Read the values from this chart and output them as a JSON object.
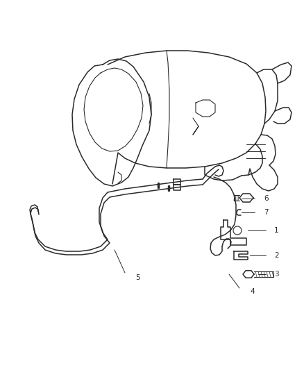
{
  "background_color": "#ffffff",
  "line_color": "#2a2a2a",
  "label_color": "#2a2a2a",
  "label_fontsize": 7.5,
  "fig_width": 4.38,
  "fig_height": 5.33,
  "dpi": 100
}
